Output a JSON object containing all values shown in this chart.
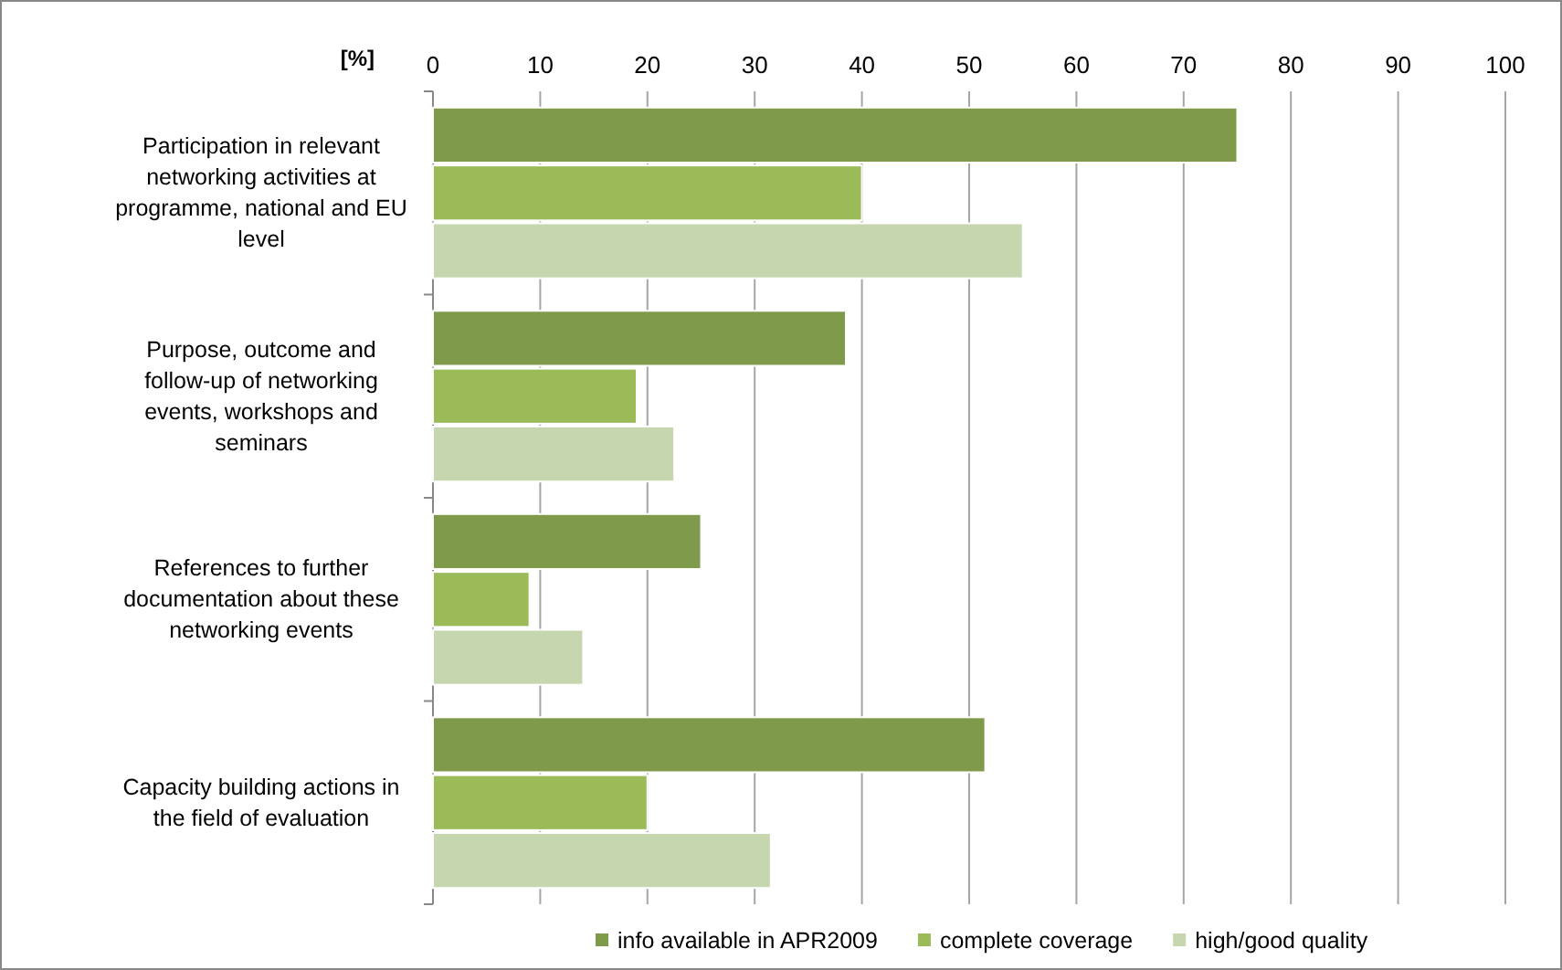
{
  "chart_data": {
    "type": "bar",
    "orientation": "horizontal",
    "xlabel": "[%]",
    "categories": [
      "Participation in relevant networking activities at programme, national and EU level",
      "Purpose, outcome and follow-up of networking events, workshops and seminars",
      "References to further documentation about these networking events",
      "Capacity building actions in the field of evaluation"
    ],
    "series": [
      {
        "name": "info available in APR2009",
        "color": "#7f9a4a",
        "values": [
          75,
          38.5,
          25,
          51.5
        ]
      },
      {
        "name": "complete coverage",
        "color": "#9bbb59",
        "values": [
          40,
          19,
          9,
          20
        ]
      },
      {
        "name": "high/good quality",
        "color": "#c6d7af",
        "values": [
          55,
          22.5,
          14,
          31.5
        ]
      }
    ],
    "xlim": [
      0,
      100
    ],
    "xticks": [
      0,
      10,
      20,
      30,
      40,
      50,
      60,
      70,
      80,
      90,
      100
    ],
    "grid": "x",
    "legend": "bottom"
  }
}
